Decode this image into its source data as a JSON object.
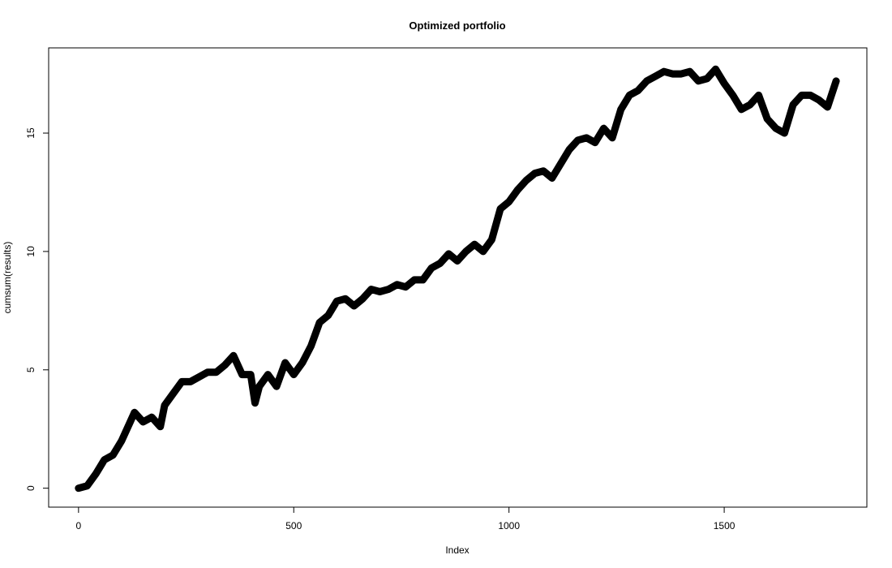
{
  "chart_data": {
    "type": "line",
    "title": "Optimized portfolio",
    "xlabel": "Index",
    "ylabel": "cumsum(results)",
    "x": [
      0,
      20,
      40,
      60,
      80,
      100,
      120,
      130,
      150,
      170,
      190,
      200,
      220,
      240,
      260,
      280,
      300,
      320,
      340,
      360,
      380,
      400,
      410,
      420,
      440,
      460,
      480,
      500,
      520,
      540,
      560,
      580,
      600,
      620,
      640,
      660,
      680,
      700,
      720,
      740,
      760,
      780,
      800,
      820,
      840,
      860,
      880,
      900,
      920,
      940,
      960,
      980,
      1000,
      1020,
      1040,
      1060,
      1080,
      1100,
      1120,
      1140,
      1160,
      1180,
      1200,
      1220,
      1240,
      1260,
      1280,
      1300,
      1320,
      1340,
      1360,
      1380,
      1400,
      1420,
      1440,
      1460,
      1480,
      1500,
      1520,
      1540,
      1560,
      1580,
      1600,
      1620,
      1640,
      1660,
      1680,
      1700,
      1720,
      1740,
      1760
    ],
    "series": [
      {
        "color": "#000000",
        "values": [
          0,
          0.1,
          0.6,
          1.2,
          1.4,
          2.0,
          2.8,
          3.2,
          2.8,
          3.0,
          2.6,
          3.5,
          4.0,
          4.5,
          4.5,
          4.7,
          4.9,
          4.9,
          5.2,
          5.6,
          4.8,
          4.8,
          3.6,
          4.3,
          4.8,
          4.3,
          5.3,
          4.8,
          5.3,
          6.0,
          7.0,
          7.3,
          7.9,
          8.0,
          7.7,
          8.0,
          8.4,
          8.3,
          8.4,
          8.6,
          8.5,
          8.8,
          8.8,
          9.3,
          9.5,
          9.9,
          9.6,
          10.0,
          10.3,
          10.0,
          10.5,
          11.8,
          12.1,
          12.6,
          13.0,
          13.3,
          13.4,
          13.1,
          13.7,
          14.3,
          14.7,
          14.8,
          14.6,
          15.2,
          14.8,
          16.0,
          16.6,
          16.8,
          17.2,
          17.4,
          17.6,
          17.5,
          17.5,
          17.6,
          17.2,
          17.3,
          17.7,
          17.1,
          16.6,
          16.0,
          16.2,
          16.6,
          15.6,
          15.2,
          15.0,
          16.2,
          16.6,
          16.6,
          16.4,
          16.1,
          17.2
        ]
      }
    ],
    "xlim": [
      -69.4,
      1831.4
    ],
    "ylim": [
      -0.8,
      18.6
    ],
    "xticks": [
      0,
      500,
      1000,
      1500
    ],
    "yticks": [
      0,
      5,
      10,
      15
    ]
  }
}
